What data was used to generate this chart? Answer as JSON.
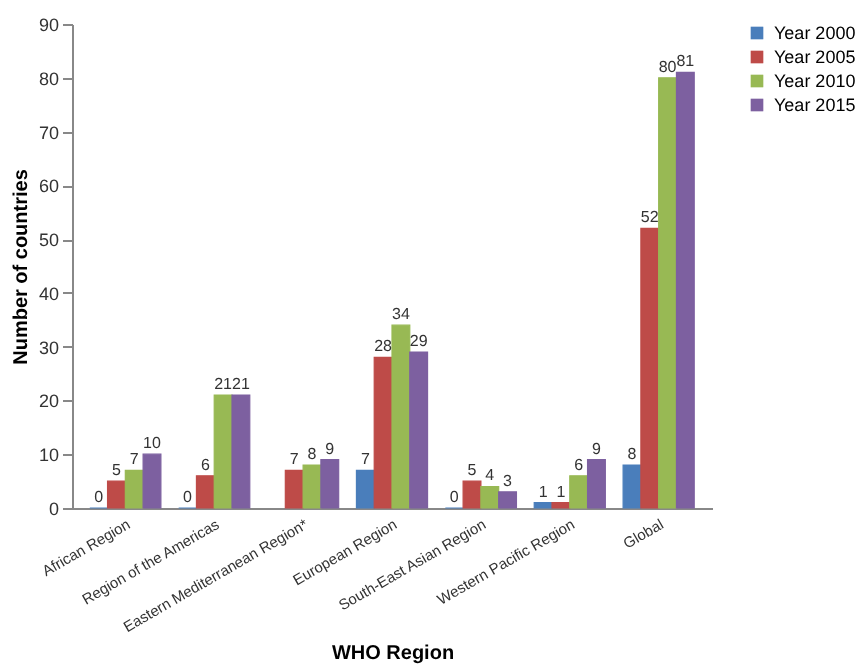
{
  "chart_data": {
    "type": "bar",
    "xlabel": "WHO Region",
    "ylabel": "Number of countries",
    "categories": [
      "African Region",
      "Region of the Americas",
      "Eastern Mediterranean Region*",
      "European Region",
      "South-East Asian Region",
      "Western Pacific Region",
      "Global"
    ],
    "series": [
      {
        "name": "Year 2000",
        "color": "#4a7ebb",
        "values": [
          0,
          0,
          null,
          7,
          0,
          1,
          8
        ],
        "value_labels": [
          "0",
          "0",
          null,
          "7",
          "0",
          "1",
          "8"
        ]
      },
      {
        "name": "Year 2005",
        "color": "#be4b48",
        "values": [
          5,
          6,
          7,
          28,
          5,
          1,
          52
        ],
        "value_labels": [
          "5",
          "6",
          "7",
          "28",
          "5",
          "1",
          "52"
        ]
      },
      {
        "name": "Year 2010",
        "color": "#98b954",
        "values": [
          7,
          21,
          8,
          34,
          4,
          6,
          80
        ],
        "value_labels": [
          "7",
          "21",
          "8",
          "34",
          "4",
          "6",
          "80"
        ]
      },
      {
        "name": "Year 2015",
        "color": "#7d60a0",
        "values": [
          10,
          21,
          9,
          29,
          3,
          9,
          81
        ],
        "value_labels": [
          "10",
          "21",
          "9",
          "29",
          "3",
          "9",
          "81"
        ]
      }
    ],
    "ylim": [
      0,
      90
    ],
    "yticks": [
      0,
      10,
      20,
      30,
      40,
      50,
      60,
      70,
      80,
      90
    ],
    "legend": "right",
    "grid": false
  }
}
